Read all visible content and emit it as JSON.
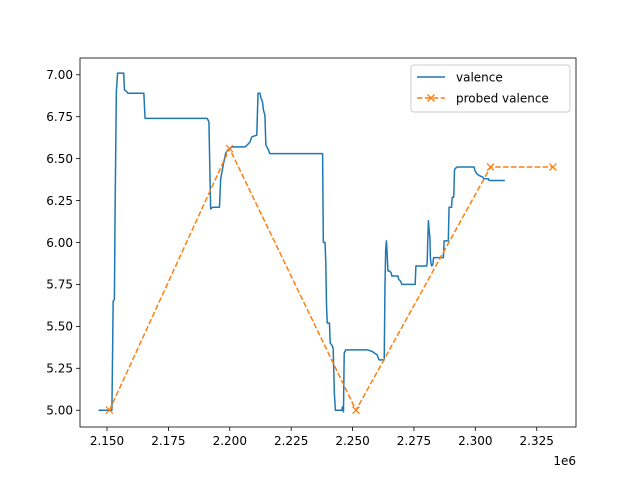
{
  "chart_data": {
    "type": "line",
    "title": "",
    "xlabel": "",
    "ylabel": "",
    "x_offset_label": "1e6",
    "xlim": [
      2139000,
      2341000
    ],
    "ylim": [
      4.9,
      7.1
    ],
    "grid": false,
    "legend_position": "top-right",
    "xticks": [
      2150000,
      2175000,
      2200000,
      2225000,
      2250000,
      2275000,
      2300000,
      2325000
    ],
    "xtick_labels": [
      "2.150",
      "2.175",
      "2.200",
      "2.225",
      "2.250",
      "2.275",
      "2.300",
      "2.325"
    ],
    "yticks": [
      5.0,
      5.25,
      5.5,
      5.75,
      6.0,
      6.25,
      6.5,
      6.75,
      7.0
    ],
    "ytick_labels": [
      "5.00",
      "5.25",
      "5.50",
      "5.75",
      "6.00",
      "6.25",
      "6.50",
      "6.75",
      "7.00"
    ],
    "series": [
      {
        "name": "valence",
        "color": "#1f77b4",
        "style": "solid",
        "marker": "none",
        "points": [
          [
            2146500,
            5.0
          ],
          [
            2151000,
            5.0
          ],
          [
            2152000,
            5.0
          ],
          [
            2152500,
            5.65
          ],
          [
            2153000,
            5.66
          ],
          [
            2153300,
            6.2
          ],
          [
            2153800,
            6.9
          ],
          [
            2154000,
            6.94
          ],
          [
            2154300,
            7.01
          ],
          [
            2156800,
            7.01
          ],
          [
            2157100,
            6.91
          ],
          [
            2158000,
            6.9
          ],
          [
            2158500,
            6.89
          ],
          [
            2165000,
            6.89
          ],
          [
            2165500,
            6.74
          ],
          [
            2190800,
            6.74
          ],
          [
            2191500,
            6.72
          ],
          [
            2192200,
            6.2
          ],
          [
            2193000,
            6.21
          ],
          [
            2195800,
            6.21
          ],
          [
            2196300,
            6.38
          ],
          [
            2197300,
            6.46
          ],
          [
            2198300,
            6.53
          ],
          [
            2199000,
            6.55
          ],
          [
            2200000,
            6.56
          ],
          [
            2201000,
            6.57
          ],
          [
            2206300,
            6.57
          ],
          [
            2207000,
            6.58
          ],
          [
            2208300,
            6.6
          ],
          [
            2208700,
            6.62
          ],
          [
            2209000,
            6.63
          ],
          [
            2211000,
            6.64
          ],
          [
            2211500,
            6.89
          ],
          [
            2212300,
            6.89
          ],
          [
            2212700,
            6.86
          ],
          [
            2213300,
            6.84
          ],
          [
            2213700,
            6.79
          ],
          [
            2214300,
            6.76
          ],
          [
            2214700,
            6.58
          ],
          [
            2215500,
            6.56
          ],
          [
            2216300,
            6.53
          ],
          [
            2237800,
            6.53
          ],
          [
            2238100,
            6.0
          ],
          [
            2238800,
            6.0
          ],
          [
            2239100,
            5.88
          ],
          [
            2239400,
            5.62
          ],
          [
            2239700,
            5.52
          ],
          [
            2240600,
            5.52
          ],
          [
            2240900,
            5.4
          ],
          [
            2241500,
            5.39
          ],
          [
            2242100,
            5.37
          ],
          [
            2242600,
            5.1
          ],
          [
            2243000,
            5.0
          ],
          [
            2245600,
            5.0
          ],
          [
            2245900,
            5.02
          ],
          [
            2246300,
            4.99
          ],
          [
            2246600,
            5.34
          ],
          [
            2247200,
            5.36
          ],
          [
            2256000,
            5.36
          ],
          [
            2258000,
            5.35
          ],
          [
            2260000,
            5.33
          ],
          [
            2260800,
            5.3
          ],
          [
            2262900,
            5.3
          ],
          [
            2263200,
            5.74
          ],
          [
            2263500,
            5.96
          ],
          [
            2263800,
            6.01
          ],
          [
            2264100,
            5.93
          ],
          [
            2264400,
            5.83
          ],
          [
            2265100,
            5.83
          ],
          [
            2265700,
            5.82
          ],
          [
            2266000,
            5.8
          ],
          [
            2268500,
            5.8
          ],
          [
            2268800,
            5.78
          ],
          [
            2269500,
            5.77
          ],
          [
            2269800,
            5.76
          ],
          [
            2270100,
            5.75
          ],
          [
            2275500,
            5.75
          ],
          [
            2275800,
            5.86
          ],
          [
            2280200,
            5.86
          ],
          [
            2280400,
            5.88
          ],
          [
            2280600,
            6.0
          ],
          [
            2280900,
            6.13
          ],
          [
            2281200,
            6.07
          ],
          [
            2281500,
            6.03
          ],
          [
            2281700,
            5.91
          ],
          [
            2282000,
            5.87
          ],
          [
            2282300,
            5.86
          ],
          [
            2282700,
            5.87
          ],
          [
            2283000,
            5.91
          ],
          [
            2287000,
            5.91
          ],
          [
            2287300,
            6.01
          ],
          [
            2289000,
            6.01
          ],
          [
            2289300,
            6.21
          ],
          [
            2290300,
            6.21
          ],
          [
            2290600,
            6.27
          ],
          [
            2291200,
            6.27
          ],
          [
            2291500,
            6.43
          ],
          [
            2291800,
            6.44
          ],
          [
            2292500,
            6.45
          ],
          [
            2299500,
            6.45
          ],
          [
            2299800,
            6.43
          ],
          [
            2300600,
            6.41
          ],
          [
            2301500,
            6.4
          ],
          [
            2303000,
            6.39
          ],
          [
            2303500,
            6.38
          ],
          [
            2305300,
            6.38
          ],
          [
            2305600,
            6.37
          ],
          [
            2312000,
            6.37
          ]
        ]
      },
      {
        "name": "probed valence",
        "color": "#ff7f0e",
        "style": "dashed",
        "marker": "x",
        "points": [
          [
            2151000,
            5.0
          ],
          [
            2199900,
            6.56
          ],
          [
            2251400,
            5.0
          ],
          [
            2306200,
            6.45
          ],
          [
            2331600,
            6.45
          ]
        ]
      }
    ]
  }
}
